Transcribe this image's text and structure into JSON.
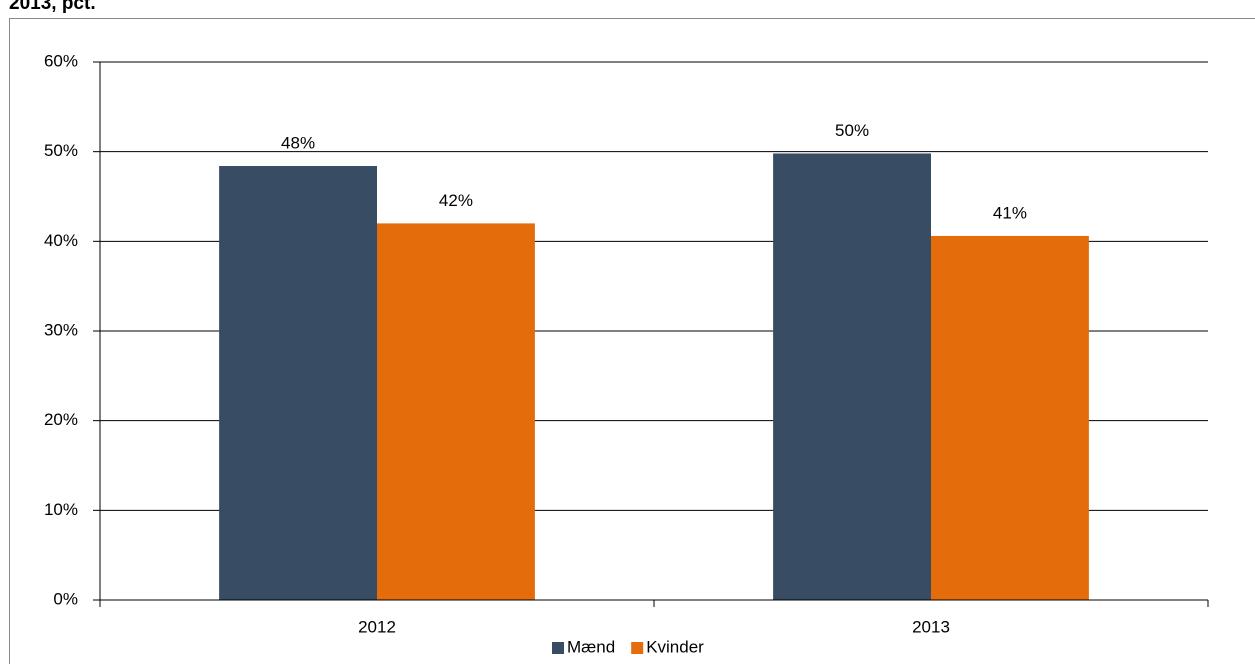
{
  "chart_data": {
    "type": "bar",
    "title": "2013, pct.",
    "categories": [
      "2012",
      "2013"
    ],
    "series": [
      {
        "name": "Mænd",
        "color": "#384d63",
        "values": [
          48.4,
          49.8
        ],
        "value_labels": [
          "48%",
          "50%"
        ]
      },
      {
        "name": "Kvinder",
        "color": "#e46c0a",
        "values": [
          42,
          40.6
        ],
        "value_labels": [
          "42%",
          "41%"
        ]
      }
    ],
    "ylim": [
      0,
      60
    ],
    "yticks": [
      {
        "value": 0,
        "label": "0%"
      },
      {
        "value": 10,
        "label": "10%"
      },
      {
        "value": 20,
        "label": "20%"
      },
      {
        "value": 30,
        "label": "30%"
      },
      {
        "value": 40,
        "label": "40%"
      },
      {
        "value": 50,
        "label": "50%"
      },
      {
        "value": 60,
        "label": "60%"
      }
    ],
    "grid": true,
    "legend": "bottom"
  }
}
